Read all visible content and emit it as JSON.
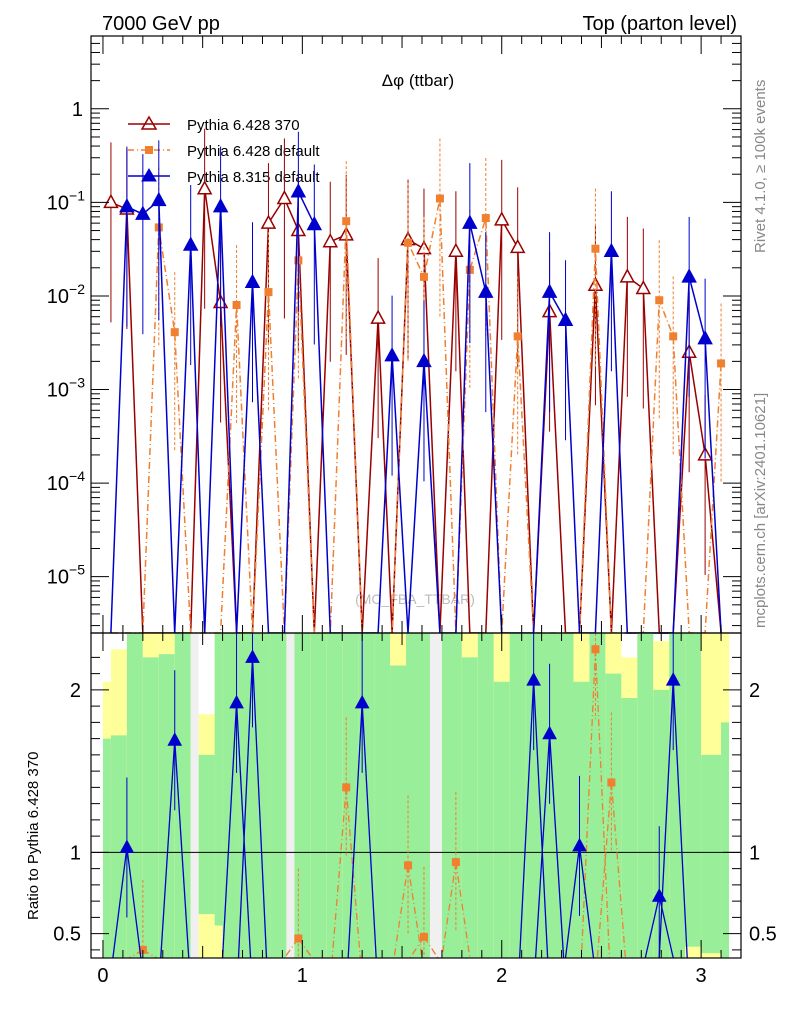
{
  "header": {
    "left": "7000 GeV pp",
    "right": "Top (parton level)"
  },
  "side_labels": {
    "rivet": "Rivet 4.1.0, ≥ 100k events",
    "mcplots": "mcplots.cern.ch [arXiv:2401.10621]"
  },
  "chart_data": [
    {
      "type": "line",
      "title": "Δφ (ttbar)",
      "watermark": "(MC_FBA_TTBAR)",
      "xlabel": "",
      "ylabel": "",
      "yscale": "log",
      "xlim": [
        -0.06,
        3.2
      ],
      "ylim": [
        2.5e-06,
        6
      ],
      "y_ticks": [
        {
          "v": 1e-05,
          "label": "10^-5"
        },
        {
          "v": 0.0001,
          "label": "10^-4"
        },
        {
          "v": 0.001,
          "label": "10^-3"
        },
        {
          "v": 0.01,
          "label": "10^-2"
        },
        {
          "v": 0.1,
          "label": "10^-1"
        },
        {
          "v": 1,
          "label": "1"
        }
      ],
      "legend_position": "top-left",
      "series": [
        {
          "name": "Pythia 6.428 370",
          "color": "#990000",
          "marker": "open-triangle",
          "line": "solid",
          "x": [
            0.04,
            0.12,
            0.2,
            0.28,
            0.36,
            0.44,
            0.51,
            0.59,
            0.67,
            0.75,
            0.83,
            0.91,
            0.98,
            1.06,
            1.14,
            1.22,
            1.3,
            1.38,
            1.45,
            1.53,
            1.61,
            1.69,
            1.77,
            1.84,
            1.92,
            2.0,
            2.08,
            2.16,
            2.24,
            2.32,
            2.39,
            2.47,
            2.55,
            2.63,
            2.71,
            2.79,
            2.86,
            2.94,
            3.02,
            3.1
          ],
          "values": [
            0.1,
            0.085,
            0.0,
            0.0,
            0.0,
            0.0,
            0.14,
            0.0085,
            0.0,
            0.0,
            0.06,
            0.11,
            0.05,
            0.0,
            0.038,
            0.045,
            0.0,
            0.0058,
            0.0,
            0.04,
            0.032,
            0.0,
            0.03,
            0.0,
            0.0,
            0.065,
            0.033,
            0.0,
            0.0068,
            0.0,
            0.0,
            0.013,
            0.0,
            0.016,
            0.012,
            0.0,
            0.0,
            0.0025,
            0.0002,
            0.0
          ]
        },
        {
          "name": "Pythia 6.428 default",
          "color": "#f07f30",
          "marker": "square",
          "line": "dash-dot",
          "x": [
            0.04,
            0.12,
            0.2,
            0.28,
            0.36,
            0.44,
            0.51,
            0.59,
            0.67,
            0.75,
            0.83,
            0.91,
            0.98,
            1.06,
            1.14,
            1.22,
            1.3,
            1.38,
            1.45,
            1.53,
            1.61,
            1.69,
            1.77,
            1.84,
            1.92,
            2.0,
            2.08,
            2.16,
            2.24,
            2.32,
            2.39,
            2.47,
            2.55,
            2.63,
            2.71,
            2.79,
            2.86,
            2.94,
            3.02,
            3.1
          ],
          "values": [
            0.0,
            0.0,
            0.0,
            0.054,
            0.0041,
            0.0,
            0.0,
            0.0,
            0.008,
            0.0,
            0.011,
            0.0,
            0.024,
            0.0,
            0.0,
            0.063,
            0.0,
            0.0,
            0.0,
            0.037,
            0.016,
            0.11,
            0.0,
            0.019,
            0.068,
            0.0,
            0.0037,
            0.0,
            0.0,
            0.0,
            0.0,
            0.032,
            0.0,
            0.0,
            0.0,
            0.009,
            0.0037,
            0.0,
            0.0,
            0.0019
          ]
        },
        {
          "name": "Pythia 8.315 default",
          "color": "#0000cc",
          "marker": "triangle",
          "line": "solid",
          "x": [
            0.04,
            0.12,
            0.2,
            0.28,
            0.36,
            0.44,
            0.51,
            0.59,
            0.67,
            0.75,
            0.83,
            0.91,
            0.98,
            1.06,
            1.14,
            1.22,
            1.3,
            1.38,
            1.45,
            1.53,
            1.61,
            1.69,
            1.77,
            1.84,
            1.92,
            2.0,
            2.08,
            2.16,
            2.24,
            2.32,
            2.39,
            2.47,
            2.55,
            2.63,
            2.71,
            2.79,
            2.86,
            2.94,
            3.02,
            3.1
          ],
          "values": [
            0.0,
            0.09,
            0.075,
            0.105,
            0.0,
            0.035,
            0.0,
            0.09,
            0.0,
            0.014,
            0.0,
            0.0,
            0.13,
            0.058,
            0.0,
            0.0,
            0.0,
            0.0,
            0.0023,
            0.0,
            0.002,
            0.0,
            0.0,
            0.06,
            0.011,
            0.0,
            0.0,
            0.0,
            0.011,
            0.0055,
            0.0,
            0.0,
            0.03,
            0.0,
            0.0,
            0.0,
            0.0,
            0.016,
            0.0035,
            0.0
          ]
        }
      ]
    },
    {
      "type": "line",
      "ylabel": "Ratio to Pythia 6.428 370",
      "xlabel": "",
      "xlim": [
        -0.06,
        3.2
      ],
      "ylim": [
        0.35,
        2.35
      ],
      "x_ticks": [
        0,
        1,
        2,
        3
      ],
      "y_ticks": [
        0.5,
        1,
        2
      ],
      "reference_line": 1,
      "band_colors": {
        "inner": "#99ee99",
        "outer": "#ffff99",
        "gap": "#f0f0f0"
      },
      "bands": [
        {
          "x0": 0.0,
          "x1": 0.04,
          "inner": [
            0.35,
            1.7
          ],
          "outer": [
            0.35,
            2.05
          ]
        },
        {
          "x0": 0.04,
          "x1": 0.12,
          "inner": [
            0.35,
            1.72
          ],
          "outer": [
            0.35,
            2.25
          ]
        },
        {
          "x0": 0.12,
          "x1": 0.2,
          "inner": [
            0.35,
            2.35
          ],
          "outer": [
            0.35,
            2.35
          ]
        },
        {
          "x0": 0.2,
          "x1": 0.28,
          "inner": [
            0.35,
            2.2
          ],
          "outer": [
            0.35,
            2.35
          ]
        },
        {
          "x0": 0.28,
          "x1": 0.36,
          "inner": [
            0.35,
            2.22
          ],
          "outer": [
            0.35,
            2.35
          ]
        },
        {
          "x0": 0.36,
          "x1": 0.44,
          "inner": [
            0.35,
            2.35
          ],
          "outer": [
            0.35,
            2.35
          ]
        },
        {
          "x0": 0.44,
          "x1": 0.48,
          "gap": true
        },
        {
          "x0": 0.48,
          "x1": 0.56,
          "inner": [
            0.62,
            1.6
          ],
          "outer": [
            0.35,
            1.85
          ]
        },
        {
          "x0": 0.56,
          "x1": 0.6,
          "inner": [
            0.55,
            2.35
          ],
          "outer": [
            0.35,
            2.35
          ]
        },
        {
          "x0": 0.6,
          "x1": 0.68,
          "inner": [
            0.35,
            2.35
          ],
          "outer": [
            0.35,
            2.35
          ]
        },
        {
          "x0": 0.68,
          "x1": 0.76,
          "inner": [
            0.35,
            2.35
          ],
          "outer": [
            0.35,
            2.35
          ]
        },
        {
          "x0": 0.76,
          "x1": 0.84,
          "inner": [
            0.35,
            2.35
          ],
          "outer": [
            0.35,
            2.35
          ]
        },
        {
          "x0": 0.84,
          "x1": 0.92,
          "inner": [
            0.35,
            2.35
          ],
          "outer": [
            0.35,
            2.35
          ]
        },
        {
          "x0": 0.92,
          "x1": 0.96,
          "gap": true
        },
        {
          "x0": 0.96,
          "x1": 1.04,
          "inner": [
            0.35,
            2.35
          ],
          "outer": [
            0.35,
            2.35
          ]
        },
        {
          "x0": 1.04,
          "x1": 1.12,
          "inner": [
            0.35,
            2.35
          ],
          "outer": [
            0.35,
            2.35
          ]
        },
        {
          "x0": 1.12,
          "x1": 1.2,
          "inner": [
            0.35,
            2.35
          ],
          "outer": [
            0.35,
            2.35
          ]
        },
        {
          "x0": 1.2,
          "x1": 1.28,
          "inner": [
            0.35,
            2.35
          ],
          "outer": [
            0.35,
            2.35
          ]
        },
        {
          "x0": 1.28,
          "x1": 1.36,
          "inner": [
            0.35,
            2.35
          ],
          "outer": [
            0.35,
            2.35
          ]
        },
        {
          "x0": 1.36,
          "x1": 1.44,
          "inner": [
            0.35,
            2.35
          ],
          "outer": [
            0.35,
            2.35
          ]
        },
        {
          "x0": 1.44,
          "x1": 1.52,
          "inner": [
            0.35,
            2.15
          ],
          "outer": [
            0.35,
            2.35
          ]
        },
        {
          "x0": 1.52,
          "x1": 1.64,
          "inner": [
            0.35,
            2.35
          ],
          "outer": [
            0.35,
            2.35
          ]
        },
        {
          "x0": 1.64,
          "x1": 1.7,
          "gap": true
        },
        {
          "x0": 1.7,
          "x1": 1.8,
          "inner": [
            0.35,
            2.35
          ],
          "outer": [
            0.35,
            2.35
          ]
        },
        {
          "x0": 1.8,
          "x1": 1.88,
          "inner": [
            0.35,
            2.2
          ],
          "outer": [
            0.35,
            2.35
          ]
        },
        {
          "x0": 1.88,
          "x1": 1.96,
          "inner": [
            0.35,
            2.35
          ],
          "outer": [
            0.35,
            2.35
          ]
        },
        {
          "x0": 1.96,
          "x1": 2.04,
          "inner": [
            0.35,
            2.05
          ],
          "outer": [
            0.35,
            2.35
          ]
        },
        {
          "x0": 2.04,
          "x1": 2.12,
          "inner": [
            0.35,
            2.35
          ],
          "outer": [
            0.35,
            2.35
          ]
        },
        {
          "x0": 2.12,
          "x1": 2.28,
          "inner": [
            0.35,
            2.35
          ],
          "outer": [
            0.35,
            2.35
          ]
        },
        {
          "x0": 2.28,
          "x1": 2.36,
          "inner": [
            0.35,
            2.35
          ],
          "outer": [
            0.35,
            2.35
          ]
        },
        {
          "x0": 2.36,
          "x1": 2.44,
          "inner": [
            0.35,
            2.05
          ],
          "outer": [
            0.35,
            2.35
          ]
        },
        {
          "x0": 2.44,
          "x1": 2.52,
          "inner": [
            0.35,
            2.35
          ],
          "outer": [
            0.35,
            2.35
          ]
        },
        {
          "x0": 2.52,
          "x1": 2.6,
          "inner": [
            0.35,
            2.1
          ],
          "outer": [
            0.35,
            2.35
          ]
        },
        {
          "x0": 2.6,
          "x1": 2.68,
          "inner": [
            0.35,
            1.95
          ],
          "outer": [
            0.35,
            2.2
          ]
        },
        {
          "x0": 2.68,
          "x1": 2.76,
          "inner": [
            0.35,
            2.35
          ],
          "outer": [
            0.35,
            2.35
          ]
        },
        {
          "x0": 2.76,
          "x1": 2.84,
          "inner": [
            0.35,
            2.0
          ],
          "outer": [
            0.35,
            2.3
          ]
        },
        {
          "x0": 2.84,
          "x1": 2.92,
          "inner": [
            0.35,
            2.35
          ],
          "outer": [
            0.35,
            2.35
          ]
        },
        {
          "x0": 2.92,
          "x1": 3.0,
          "inner": [
            0.42,
            2.35
          ],
          "outer": [
            0.35,
            2.35
          ]
        },
        {
          "x0": 3.0,
          "x1": 3.1,
          "inner": [
            0.38,
            1.6
          ],
          "outer": [
            0.35,
            2.35
          ]
        },
        {
          "x0": 3.1,
          "x1": 3.14,
          "inner": [
            0.35,
            1.8
          ],
          "outer": [
            0.35,
            2.35
          ]
        }
      ],
      "series": [
        {
          "name": "Pythia 6.428 default",
          "color": "#f07f30",
          "x": [
            0.2,
            0.98,
            1.22,
            1.53,
            1.61,
            1.77,
            2.47,
            2.55
          ],
          "values": [
            0.4,
            0.47,
            1.4,
            0.92,
            0.48,
            0.94,
            2.25,
            1.43
          ]
        },
        {
          "name": "Pythia 8.315 default",
          "color": "#0000cc",
          "x": [
            0.12,
            0.36,
            0.67,
            0.75,
            1.3,
            2.16,
            2.24,
            2.39,
            2.79,
            2.86
          ],
          "values": [
            1.03,
            1.69,
            1.92,
            2.2,
            1.92,
            2.06,
            1.73,
            1.04,
            0.73,
            2.06
          ]
        }
      ]
    }
  ]
}
